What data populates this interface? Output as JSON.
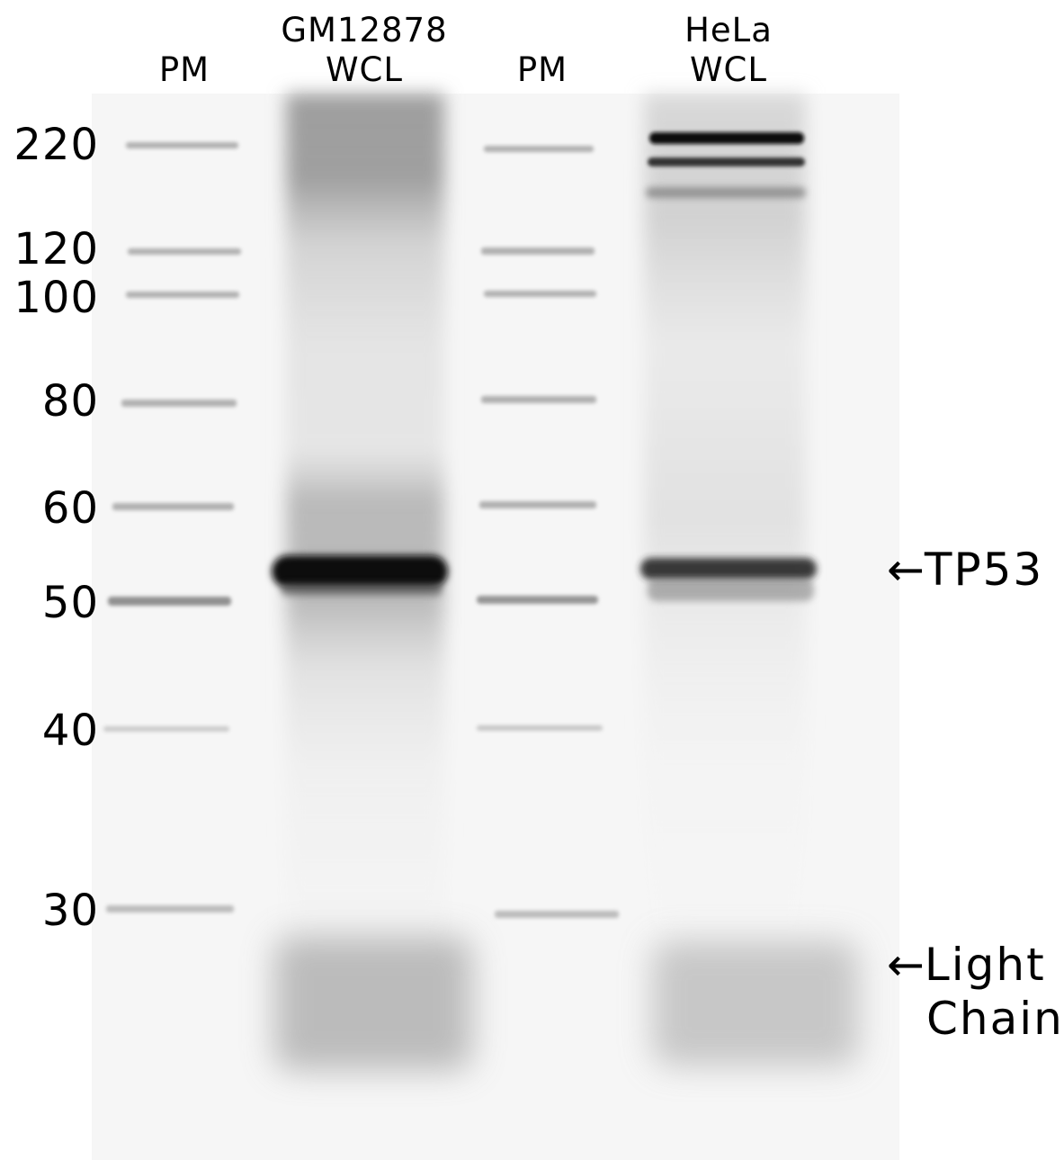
{
  "lanes": [
    {
      "id": "pm1",
      "lines": [
        "",
        "PM"
      ]
    },
    {
      "id": "gm",
      "lines": [
        "GM12878",
        "WCL"
      ]
    },
    {
      "id": "pm2",
      "lines": [
        "",
        "PM"
      ]
    },
    {
      "id": "hela",
      "lines": [
        "HeLa",
        "WCL"
      ]
    }
  ],
  "markers": [
    "220",
    "120",
    "100",
    "80",
    "60",
    "50",
    "40",
    "30"
  ],
  "annotations": {
    "arrow": "←",
    "tp53": "TP53",
    "light_line1": "Light",
    "light_line2": "Chain"
  }
}
